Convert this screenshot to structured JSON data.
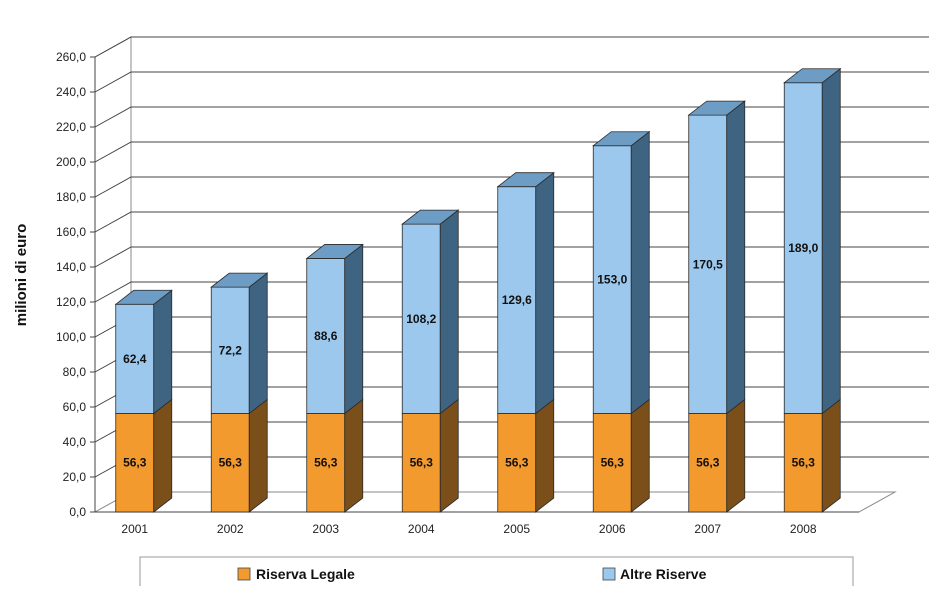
{
  "chart_data": {
    "type": "bar",
    "stacked": true,
    "three_d": true,
    "categories": [
      "2001",
      "2002",
      "2003",
      "2004",
      "2005",
      "2006",
      "2007",
      "2008"
    ],
    "series": [
      {
        "name": "Riserva Legale",
        "values": [
          56.3,
          56.3,
          56.3,
          56.3,
          56.3,
          56.3,
          56.3,
          56.3
        ],
        "labels": [
          "56,3",
          "56,3",
          "56,3",
          "56,3",
          "56,3",
          "56,3",
          "56,3",
          "56,3"
        ],
        "color": "#f39a2e",
        "side_color": "#7a4f1a",
        "top_color": "#c47a22"
      },
      {
        "name": "Altre Riserve",
        "values": [
          62.4,
          72.2,
          88.6,
          108.2,
          129.6,
          153.0,
          170.5,
          189.0
        ],
        "labels": [
          "62,4",
          "72,2",
          "88,6",
          "108,2",
          "129,6",
          "153,0",
          "170,5",
          "189,0"
        ],
        "color": "#9cc8ee",
        "side_color": "#3f6482",
        "top_color": "#6d9cc4"
      }
    ],
    "ylabel": "milioni di euro",
    "ylim": [
      0,
      260
    ],
    "yticks": [
      "0,0",
      "20,0",
      "40,0",
      "60,0",
      "80,0",
      "100,0",
      "120,0",
      "140,0",
      "160,0",
      "180,0",
      "200,0",
      "220,0",
      "240,0",
      "260,0"
    ],
    "gridlines": true,
    "legend_position": "bottom"
  }
}
